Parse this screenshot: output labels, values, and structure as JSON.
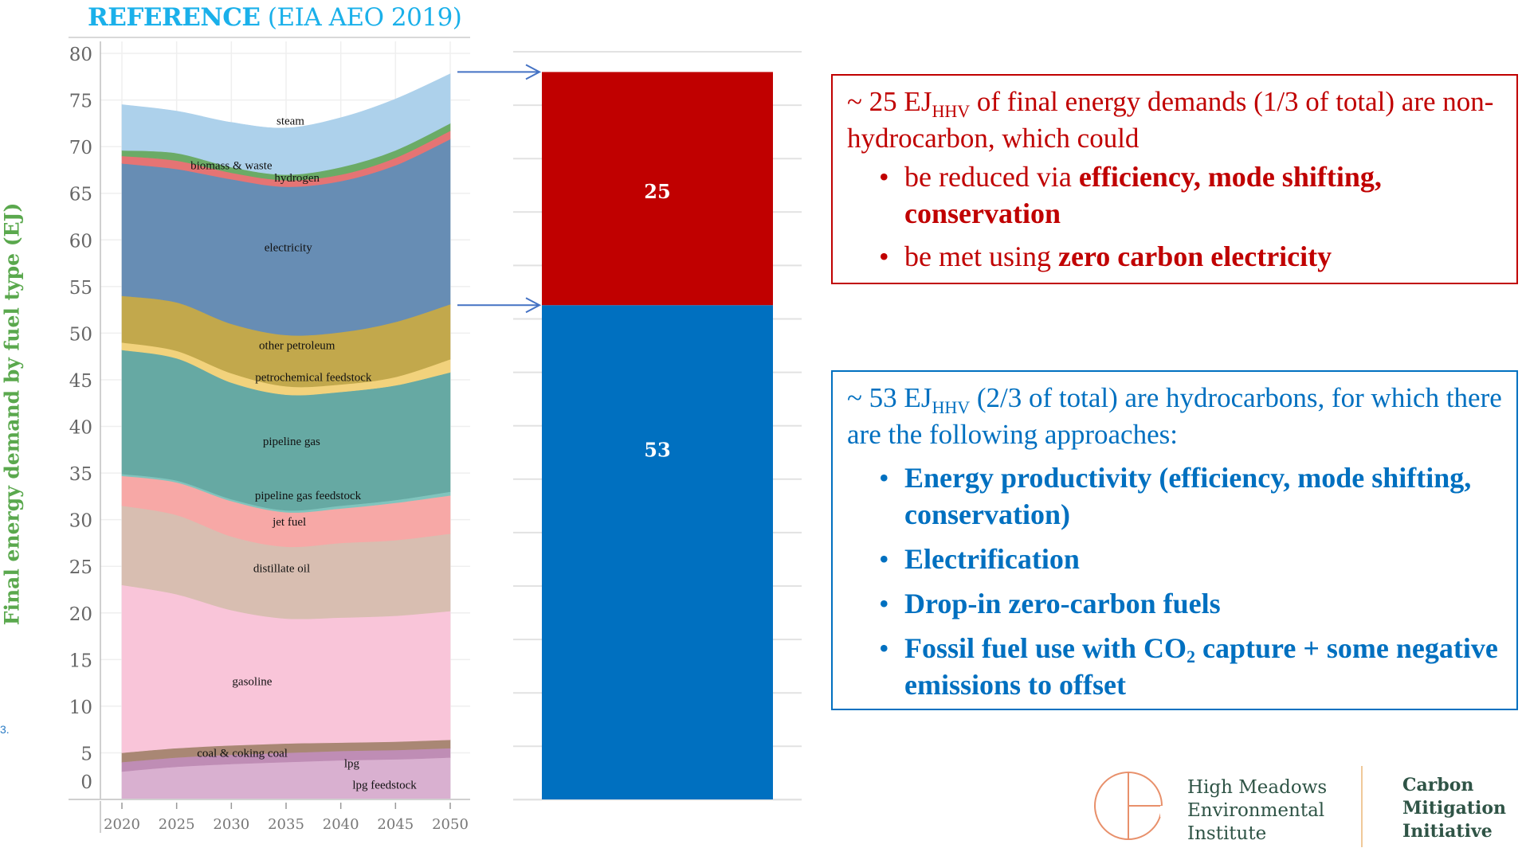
{
  "chart_data": [
    {
      "type": "area",
      "stacked": true,
      "title": "REFERENCE (EIA AEO 2019)",
      "title_bold_part": "REFERENCE",
      "title_rest": " (EIA AEO 2019)",
      "xlabel": "",
      "ylabel": "Final energy demand by fuel type (EJ)",
      "x": [
        2020,
        2025,
        2030,
        2035,
        2040,
        2045,
        2050
      ],
      "xticks": [
        "2020",
        "2025",
        "2030",
        "2035",
        "2040",
        "2045",
        "2050"
      ],
      "yticks": [
        "0",
        "5",
        "10",
        "15",
        "20",
        "25",
        "30",
        "35",
        "40",
        "45",
        "50",
        "55",
        "60",
        "65",
        "70",
        "75",
        "80"
      ],
      "ylim": [
        0,
        80
      ],
      "grid": true,
      "legend": "inline-labels",
      "series": [
        {
          "name": "lpg  feedstock",
          "color": "#d9b0d0",
          "values": [
            3.0,
            3.5,
            3.8,
            4.0,
            4.2,
            4.3,
            4.5
          ]
        },
        {
          "name": "lpg",
          "color": "#bf8db5",
          "values": [
            1.0,
            1.0,
            1.0,
            1.0,
            1.0,
            1.0,
            1.0
          ]
        },
        {
          "name": "coal & coking coal",
          "color": "#a98774",
          "values": [
            1.0,
            1.0,
            1.0,
            1.0,
            0.9,
            0.9,
            0.9
          ]
        },
        {
          "name": "gasoline",
          "color": "#f9c5d9",
          "values": [
            18.0,
            16.5,
            14.5,
            13.4,
            13.4,
            13.5,
            13.8
          ]
        },
        {
          "name": "distillate oil",
          "color": "#d8beb1",
          "values": [
            8.5,
            8.5,
            7.9,
            7.7,
            8.0,
            8.1,
            8.3
          ]
        },
        {
          "name": "jet fuel",
          "color": "#f7a8a6",
          "values": [
            3.2,
            3.5,
            3.8,
            3.7,
            3.7,
            4.0,
            4.1
          ]
        },
        {
          "name": "pipeline gas feedstock",
          "color": "#80c4bd",
          "values": [
            0.2,
            0.2,
            0.2,
            0.2,
            0.3,
            0.3,
            0.4
          ]
        },
        {
          "name": "pipeline gas",
          "color": "#66a9a3",
          "values": [
            13.3,
            13.1,
            12.5,
            12.4,
            12.2,
            12.3,
            12.8
          ]
        },
        {
          "name": "petrochemical feedstock",
          "color": "#f2d27c",
          "values": [
            0.8,
            0.8,
            1.0,
            0.9,
            0.8,
            0.9,
            1.4
          ]
        },
        {
          "name": "other petroleum",
          "color": "#c2a84c",
          "values": [
            5.0,
            5.2,
            5.3,
            5.5,
            5.6,
            5.9,
            5.9
          ]
        },
        {
          "name": "electricity",
          "color": "#678db4",
          "values": [
            14.2,
            14.3,
            15.5,
            15.9,
            16.2,
            16.8,
            17.7
          ]
        },
        {
          "name": "hydrogen",
          "color": "#e57474",
          "values": [
            0.8,
            0.9,
            0.7,
            0.7,
            0.7,
            0.8,
            0.9
          ]
        },
        {
          "name": "biomass & waste",
          "color": "#6bab66",
          "values": [
            0.6,
            0.8,
            0.6,
            0.6,
            0.8,
            0.8,
            0.8
          ]
        },
        {
          "name": "steam",
          "color": "#add1eb",
          "values": [
            4.9,
            4.5,
            4.8,
            5.0,
            5.3,
            5.5,
            5.3
          ]
        }
      ],
      "labels": [
        {
          "text": "steam",
          "x": 2035.4,
          "y": 72.8
        },
        {
          "text": "biomass & waste",
          "x": 2030.0,
          "y": 68.0
        },
        {
          "text": "hydrogen",
          "x": 2036.0,
          "y": 66.7
        },
        {
          "text": "electricity",
          "x": 2035.2,
          "y": 59.2
        },
        {
          "text": "other petroleum",
          "x": 2036.0,
          "y": 48.7
        },
        {
          "text": "petrochemical feedstock",
          "x": 2037.5,
          "y": 45.3
        },
        {
          "text": "pipeline gas",
          "x": 2035.5,
          "y": 38.4
        },
        {
          "text": "pipeline gas feedstock",
          "x": 2037.0,
          "y": 32.6
        },
        {
          "text": "jet fuel",
          "x": 2035.3,
          "y": 29.8
        },
        {
          "text": "distillate oil",
          "x": 2034.6,
          "y": 24.8
        },
        {
          "text": "gasoline",
          "x": 2031.9,
          "y": 12.7
        },
        {
          "text": "coal & coking coal",
          "x": 2031.0,
          "y": 5.0
        },
        {
          "text": "lpg",
          "x": 2041.0,
          "y": 3.9
        },
        {
          "text": "lpg  feedstock",
          "x": 2044.0,
          "y": 1.6
        }
      ]
    },
    {
      "type": "bar",
      "stacked": true,
      "categories": [
        ""
      ],
      "series": [
        {
          "name": "hydrocarbons",
          "color": "#0070c0",
          "values": [
            53
          ]
        },
        {
          "name": "non-hydrocarbons",
          "color": "#c00000",
          "values": [
            25
          ]
        }
      ],
      "data_labels": [
        "53",
        "25"
      ],
      "ylim": [
        0,
        80
      ],
      "grid": true
    }
  ],
  "arrows": [
    {
      "from": "area-total-2050",
      "to": "bar-top"
    },
    {
      "from": "area-other-petroleum-2050",
      "to": "bar-split"
    }
  ],
  "red_box": {
    "lead_pre": "~ 25 EJ",
    "lead_sub": "HHV",
    "lead_post": " of final energy demands (1/3 of total) are non-hydrocarbon, which could",
    "bullets": [
      {
        "plain": "be reduced via ",
        "bold": "efficiency, mode shifting, conservation"
      },
      {
        "plain": "be met using ",
        "bold": "zero carbon electricity"
      }
    ],
    "color": "#c00000"
  },
  "blue_box": {
    "lead_pre": "~ 53 EJ",
    "lead_sub": "HHV",
    "lead_post": " (2/3 of total) are hydrocarbons, for which there are the following approaches:",
    "bullets": [
      {
        "text": "Energy productivity (efficiency, mode shifting, conservation)"
      },
      {
        "text": "Electrification"
      },
      {
        "text": "Drop-in zero-carbon fuels"
      },
      {
        "pre": "Fossil fuel use with CO",
        "sub": "2",
        "post": " capture + some negative emissions to offset"
      }
    ],
    "color": "#0070c0"
  },
  "edge_fragment": "3.",
  "logos": {
    "left_lines": [
      "High Meadows",
      "Environmental",
      "Institute"
    ],
    "right_lines": [
      "Carbon",
      "Mitigation",
      "Initiative"
    ],
    "mark_color": "#e8906b",
    "text_color": "#2f5446",
    "divider_color": "#f0c999"
  }
}
